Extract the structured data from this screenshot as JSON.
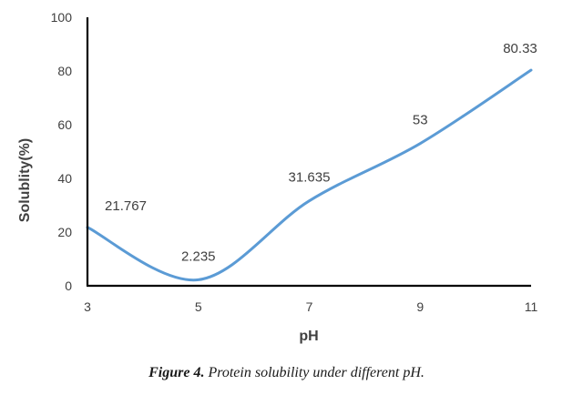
{
  "chart_data": {
    "type": "line",
    "x": [
      3,
      5,
      7,
      9,
      11
    ],
    "y": [
      21.767,
      2.235,
      31.635,
      53,
      80.33
    ],
    "data_labels": [
      "21.767",
      "2.235",
      "31.635",
      "53",
      "80.33"
    ],
    "xlabel": "pH",
    "ylabel": "Solublity(%)",
    "xlim": [
      3,
      11
    ],
    "ylim": [
      0,
      100
    ],
    "xticks": [
      3,
      5,
      7,
      9,
      11
    ],
    "yticks": [
      0,
      20,
      40,
      60,
      80,
      100
    ],
    "line_color": "#5b9bd5",
    "axis_color": "#000000",
    "smooth": true,
    "grid": false,
    "legend": "none"
  },
  "caption": {
    "label": "Figure 4.",
    "text": "Protein solubility under different pH."
  }
}
